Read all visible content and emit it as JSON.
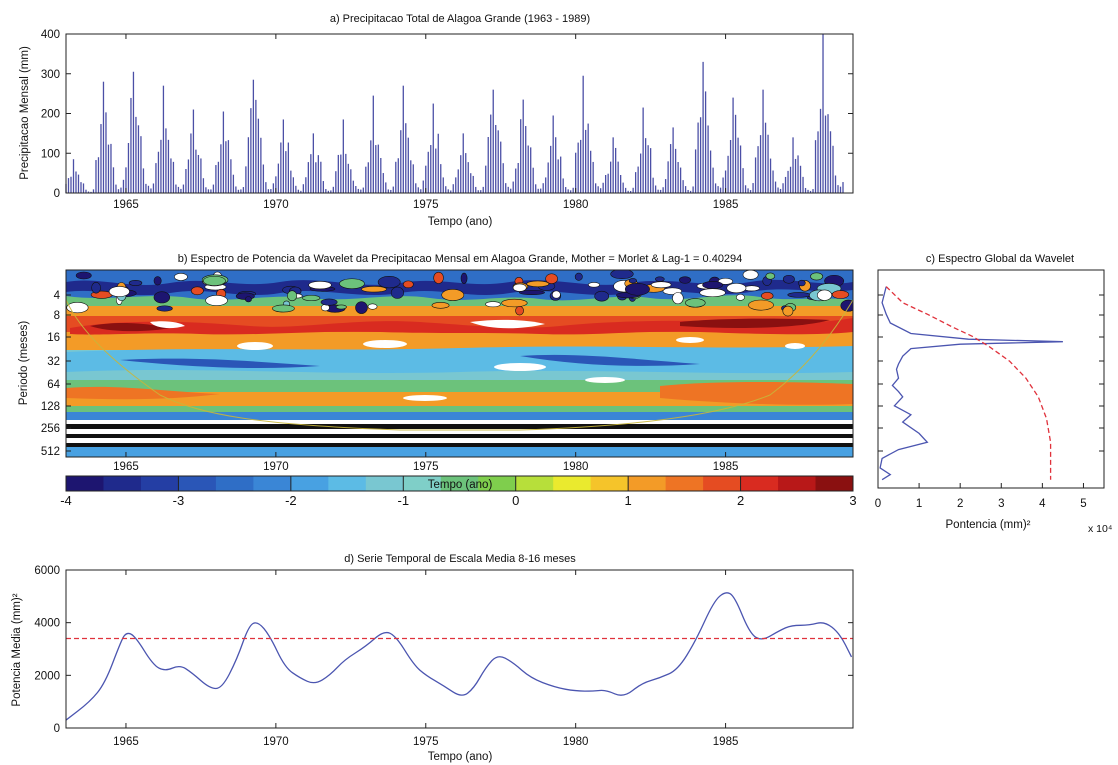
{
  "chart_data": [
    {
      "id": "a",
      "type": "bar",
      "title": "a) Precipitacao Total de Alagoa Grande (1963 - 1989)",
      "xlabel": "Tempo (ano)",
      "ylabel": "Precipitacao Mensal (mm)",
      "xlim": [
        1963,
        1989.25
      ],
      "ylim": [
        0,
        400
      ],
      "xticks": [
        1965,
        1970,
        1975,
        1980,
        1985
      ],
      "yticks": [
        0,
        100,
        200,
        300,
        400
      ],
      "bar_color": "#4b4fa6",
      "annual_peaks": [
        {
          "year": 1963,
          "peak": 85
        },
        {
          "year": 1964,
          "peak": 280
        },
        {
          "year": 1965,
          "peak": 305
        },
        {
          "year": 1966,
          "peak": 270
        },
        {
          "year": 1967,
          "peak": 210
        },
        {
          "year": 1968,
          "peak": 205
        },
        {
          "year": 1969,
          "peak": 285
        },
        {
          "year": 1970,
          "peak": 185
        },
        {
          "year": 1971,
          "peak": 150
        },
        {
          "year": 1972,
          "peak": 185
        },
        {
          "year": 1973,
          "peak": 245
        },
        {
          "year": 1974,
          "peak": 270
        },
        {
          "year": 1975,
          "peak": 225
        },
        {
          "year": 1976,
          "peak": 150
        },
        {
          "year": 1977,
          "peak": 260
        },
        {
          "year": 1978,
          "peak": 235
        },
        {
          "year": 1979,
          "peak": 195
        },
        {
          "year": 1980,
          "peak": 295
        },
        {
          "year": 1981,
          "peak": 140
        },
        {
          "year": 1982,
          "peak": 215
        },
        {
          "year": 1983,
          "peak": 165
        },
        {
          "year": 1984,
          "peak": 330
        },
        {
          "year": 1985,
          "peak": 240
        },
        {
          "year": 1986,
          "peak": 260
        },
        {
          "year": 1987,
          "peak": 140
        },
        {
          "year": 1988,
          "peak": 400
        }
      ]
    },
    {
      "id": "b",
      "type": "heatmap",
      "title": "b)  Espectro de Potencia da Wavelet da Precipitacao Mensal em Alagoa Grande, Mother = Morlet & Lag-1 = 0.40294",
      "xlabel": "Tempo (ano)",
      "ylabel": "Periodo (meses)",
      "xlim": [
        1963,
        1989.25
      ],
      "xticks": [
        1965,
        1970,
        1975,
        1980,
        1985
      ],
      "yticks": [
        "4",
        "8",
        "16",
        "32",
        "64",
        "128",
        "256",
        "512"
      ],
      "colorbar": {
        "range": [
          -4,
          3
        ],
        "ticks": [
          "-4",
          "-3",
          "-2",
          "-1",
          "0",
          "1",
          "2",
          "3"
        ],
        "colors": [
          "#1d1570",
          "#1f2a8c",
          "#243ea4",
          "#2a56b7",
          "#2f6ec6",
          "#3a86d6",
          "#48a1e2",
          "#5cbbe5",
          "#79c7d1",
          "#7fcfc8",
          "#6cc27b",
          "#7fce4d",
          "#b7df3a",
          "#eaea2e",
          "#f5c42a",
          "#f39b27",
          "#ee7424",
          "#e54c22",
          "#d92b20",
          "#b81818",
          "#8a1010"
        ]
      },
      "cone_of_influence": true,
      "dominant_band": "16 meses"
    },
    {
      "id": "c",
      "type": "line",
      "title": "c) Espectro Global da Wavelet",
      "xlabel": "Pontencia  (mm)²",
      "x_multiplier": "x 10⁴",
      "xlim": [
        0,
        5.5
      ],
      "xticks": [
        "0",
        "1",
        "2",
        "3",
        "4",
        "5"
      ],
      "series": [
        {
          "style": "solid",
          "color": "#4b55b0",
          "points": [
            [
              0.2,
              4
            ],
            [
              0.1,
              6
            ],
            [
              0.2,
              8
            ],
            [
              0.3,
              10
            ],
            [
              0.8,
              13
            ],
            [
              2.2,
              15
            ],
            [
              4.5,
              16
            ],
            [
              2.0,
              17
            ],
            [
              0.8,
              19
            ],
            [
              0.6,
              23
            ],
            [
              0.5,
              28
            ],
            [
              0.45,
              32
            ],
            [
              0.5,
              40
            ],
            [
              0.35,
              48
            ],
            [
              0.5,
              56
            ],
            [
              0.6,
              64
            ],
            [
              0.4,
              80
            ],
            [
              0.8,
              100
            ],
            [
              0.6,
              120
            ],
            [
              1.0,
              160
            ],
            [
              1.2,
              200
            ],
            [
              0.5,
              240
            ],
            [
              0.1,
              300
            ],
            [
              0.05,
              380
            ],
            [
              0.3,
              450
            ],
            [
              0.1,
              512
            ]
          ]
        },
        {
          "style": "dashed",
          "color": "#e0323c",
          "points": [
            [
              0.2,
              4
            ],
            [
              0.6,
              6
            ],
            [
              1.2,
              8
            ],
            [
              1.8,
              11
            ],
            [
              2.3,
              14
            ],
            [
              2.7,
              18
            ],
            [
              3.2,
              26
            ],
            [
              3.6,
              40
            ],
            [
              3.9,
              64
            ],
            [
              4.1,
              110
            ],
            [
              4.2,
              200
            ],
            [
              4.2,
              512
            ]
          ]
        }
      ]
    },
    {
      "id": "d",
      "type": "line",
      "title": "d) Serie Temporal de Escala Media 8-16 meses",
      "xlabel": "Tempo (ano)",
      "ylabel": "Potencia Media (mm)²",
      "xlim": [
        1963,
        1989.25
      ],
      "ylim": [
        0,
        6000
      ],
      "xticks": [
        1965,
        1970,
        1975,
        1980,
        1985
      ],
      "yticks": [
        0,
        2000,
        4000,
        6000
      ],
      "significance_level": 3400,
      "series": [
        {
          "style": "solid",
          "color": "#4b55b0",
          "points": [
            [
              1963,
              300
            ],
            [
              1963.8,
              1000
            ],
            [
              1964.3,
              1700
            ],
            [
              1964.8,
              3200
            ],
            [
              1965,
              3650
            ],
            [
              1965.3,
              3500
            ],
            [
              1965.9,
              2400
            ],
            [
              1966.3,
              2150
            ],
            [
              1966.8,
              2400
            ],
            [
              1967.2,
              2100
            ],
            [
              1967.8,
              1500
            ],
            [
              1968.2,
              1500
            ],
            [
              1968.7,
              2600
            ],
            [
              1969.1,
              3900
            ],
            [
              1969.4,
              4050
            ],
            [
              1969.8,
              3500
            ],
            [
              1970.3,
              2300
            ],
            [
              1970.8,
              1900
            ],
            [
              1971.3,
              1650
            ],
            [
              1971.8,
              2000
            ],
            [
              1972.3,
              2600
            ],
            [
              1973,
              3100
            ],
            [
              1973.6,
              3700
            ],
            [
              1974,
              3500
            ],
            [
              1974.6,
              2400
            ],
            [
              1975,
              2000
            ],
            [
              1975.6,
              1600
            ],
            [
              1976.2,
              1150
            ],
            [
              1976.6,
              1500
            ],
            [
              1977,
              2300
            ],
            [
              1977.4,
              2800
            ],
            [
              1977.9,
              2500
            ],
            [
              1978.5,
              1900
            ],
            [
              1979.3,
              1550
            ],
            [
              1980,
              1400
            ],
            [
              1980.6,
              1400
            ],
            [
              1981,
              1450
            ],
            [
              1981.6,
              1150
            ],
            [
              1982.2,
              1700
            ],
            [
              1982.8,
              1900
            ],
            [
              1983.4,
              2200
            ],
            [
              1984,
              3300
            ],
            [
              1984.6,
              4800
            ],
            [
              1985,
              5200
            ],
            [
              1985.3,
              5000
            ],
            [
              1985.8,
              3600
            ],
            [
              1986.2,
              3300
            ],
            [
              1986.8,
              3700
            ],
            [
              1987.2,
              3900
            ],
            [
              1987.8,
              3900
            ],
            [
              1988.3,
              4050
            ],
            [
              1988.8,
              3600
            ],
            [
              1989.2,
              2700
            ]
          ]
        }
      ]
    }
  ]
}
